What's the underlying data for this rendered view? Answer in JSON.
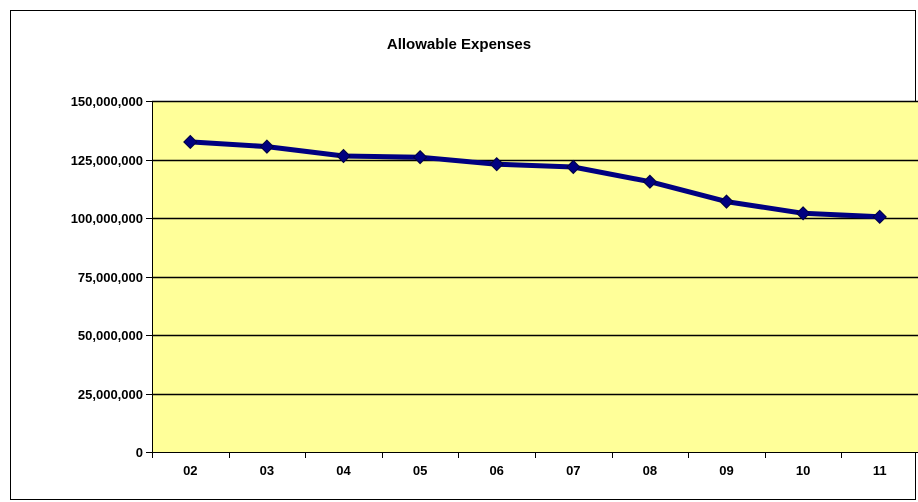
{
  "chart_data": {
    "type": "line",
    "title": "Allowable Expenses",
    "xlabel": "",
    "ylabel": "",
    "categories": [
      "02",
      "03",
      "04",
      "05",
      "06",
      "07",
      "08",
      "09",
      "10",
      "11"
    ],
    "series": [
      {
        "values": [
          132500000,
          130500000,
          126500000,
          126000000,
          123000000,
          121800000,
          115500000,
          107000000,
          102000000,
          100500000
        ]
      }
    ],
    "ylim": [
      0,
      150000000
    ],
    "yticks": [
      0,
      25000000,
      50000000,
      75000000,
      100000000,
      125000000,
      150000000
    ],
    "ytick_labels": [
      "0",
      "25,000,000",
      "50,000,000",
      "75,000,000",
      "100,000,000",
      "125,000,000",
      "150,000,000"
    ],
    "grid": "horizontal",
    "legend": "none",
    "colors": {
      "plot_background": "#FFFF99",
      "line": "#000080",
      "marker": "#000080",
      "gridline": "#000000"
    }
  }
}
